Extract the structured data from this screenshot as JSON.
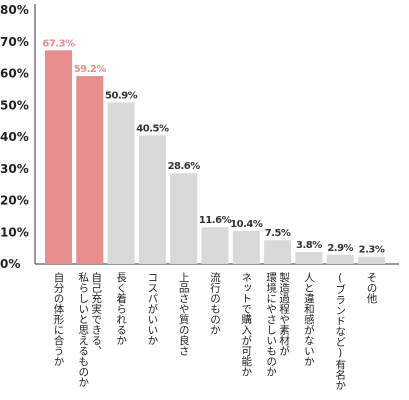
{
  "chart_data": {
    "type": "bar",
    "title": "",
    "xlabel": "",
    "ylabel": "",
    "ylim": [
      0,
      80
    ],
    "y_ticks": [
      "0%",
      "10%",
      "20%",
      "30%",
      "40%",
      "50%",
      "60%",
      "70%",
      "80%"
    ],
    "grid": false,
    "colors": {
      "highlight": "#e88e8e",
      "normal": "#d9d9d9",
      "highlight_label": "#e88e8e",
      "normal_label": "#333333"
    },
    "categories": [
      [
        "自分の体形に合うか"
      ],
      [
        "自己充実できる、",
        "私らしいと思えるものか"
      ],
      [
        "長く着られるか"
      ],
      [
        "コスパがいいか"
      ],
      [
        "上品さや質の良さ"
      ],
      [
        "流行のものか"
      ],
      [
        "ネットで購入が可能か"
      ],
      [
        "製造過程や素材が",
        "環境にやさしいものか"
      ],
      [
        "人と違和感がないか"
      ],
      [
        "(ブランドなど)有名か"
      ],
      [
        "その他"
      ]
    ],
    "values": [
      67.3,
      59.2,
      50.9,
      40.5,
      28.6,
      11.6,
      10.4,
      7.5,
      3.8,
      2.9,
      2.3
    ],
    "value_labels": [
      "67.3%",
      "59.2%",
      "50.9%",
      "40.5%",
      "28.6%",
      "11.6%",
      "10.4%",
      "7.5%",
      "3.8%",
      "2.9%",
      "2.3%"
    ],
    "highlighted": [
      true,
      true,
      false,
      false,
      false,
      false,
      false,
      false,
      false,
      false,
      false
    ]
  }
}
